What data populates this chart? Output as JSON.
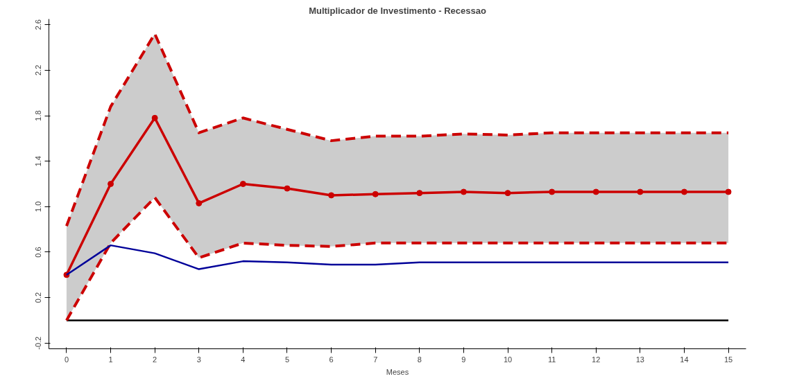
{
  "chart_data": {
    "type": "line",
    "title": "Multiplicador de Investimento - Recessao",
    "xlabel": "Meses",
    "x": [
      0,
      1,
      2,
      3,
      4,
      5,
      6,
      7,
      8,
      9,
      10,
      11,
      12,
      13,
      14,
      15
    ],
    "series": [
      {
        "color": "#cc0000",
        "marker": "circle",
        "values": [
          0.4,
          1.2,
          1.78,
          1.03,
          1.2,
          1.16,
          1.1,
          1.11,
          1.12,
          1.13,
          1.12,
          1.13,
          1.13,
          1.13,
          1.13,
          1.13
        ],
        "lower": [
          0.0,
          0.68,
          1.08,
          0.55,
          0.68,
          0.66,
          0.65,
          0.68,
          0.68,
          0.68,
          0.68,
          0.68,
          0.68,
          0.68,
          0.68,
          0.68
        ],
        "upper": [
          0.83,
          1.88,
          2.52,
          1.65,
          1.78,
          1.68,
          1.58,
          1.62,
          1.62,
          1.64,
          1.63,
          1.65,
          1.65,
          1.65,
          1.65,
          1.65
        ]
      },
      {
        "color": "#cc0000",
        "marker": "none",
        "line_style": "dashed",
        "values": [
          0.83,
          1.88,
          2.52,
          1.65,
          1.78,
          1.68,
          1.58,
          1.62,
          1.62,
          1.64,
          1.63,
          1.65,
          1.65,
          1.65,
          1.65,
          1.65
        ]
      },
      {
        "color": "#cc0000",
        "marker": "none",
        "line_style": "dashed",
        "values": [
          0.0,
          0.68,
          1.08,
          0.55,
          0.68,
          0.66,
          0.65,
          0.68,
          0.68,
          0.68,
          0.68,
          0.68,
          0.68,
          0.68,
          0.68,
          0.68
        ]
      },
      {
        "color": "#000099",
        "marker": "none",
        "values": [
          0.4,
          0.66,
          0.59,
          0.45,
          0.52,
          0.51,
          0.49,
          0.49,
          0.51,
          0.51,
          0.51,
          0.51,
          0.51,
          0.51,
          0.51,
          0.51
        ]
      }
    ],
    "xlim": [
      -0.4,
      15.4
    ],
    "ylim": [
      -0.25,
      2.65
    ],
    "xticks": [
      0,
      1,
      2,
      3,
      4,
      5,
      6,
      7,
      8,
      9,
      10,
      11,
      12,
      13,
      14,
      15
    ],
    "yticks": [
      {
        "value": -0.2,
        "label": "-0.2"
      },
      {
        "value": 0.2,
        "label": "0.2"
      },
      {
        "value": 0.6,
        "label": "0.6"
      },
      {
        "value": 1.0,
        "label": "1.0"
      },
      {
        "value": 1.4,
        "label": "1.4"
      },
      {
        "value": 1.8,
        "label": "1.8"
      },
      {
        "value": 2.2,
        "label": "2.2"
      },
      {
        "value": 2.6,
        "label": "2.6"
      }
    ],
    "ref_lines": [
      {
        "axis": "y",
        "value": 0,
        "color": "#000000"
      }
    ],
    "grid": false
  }
}
